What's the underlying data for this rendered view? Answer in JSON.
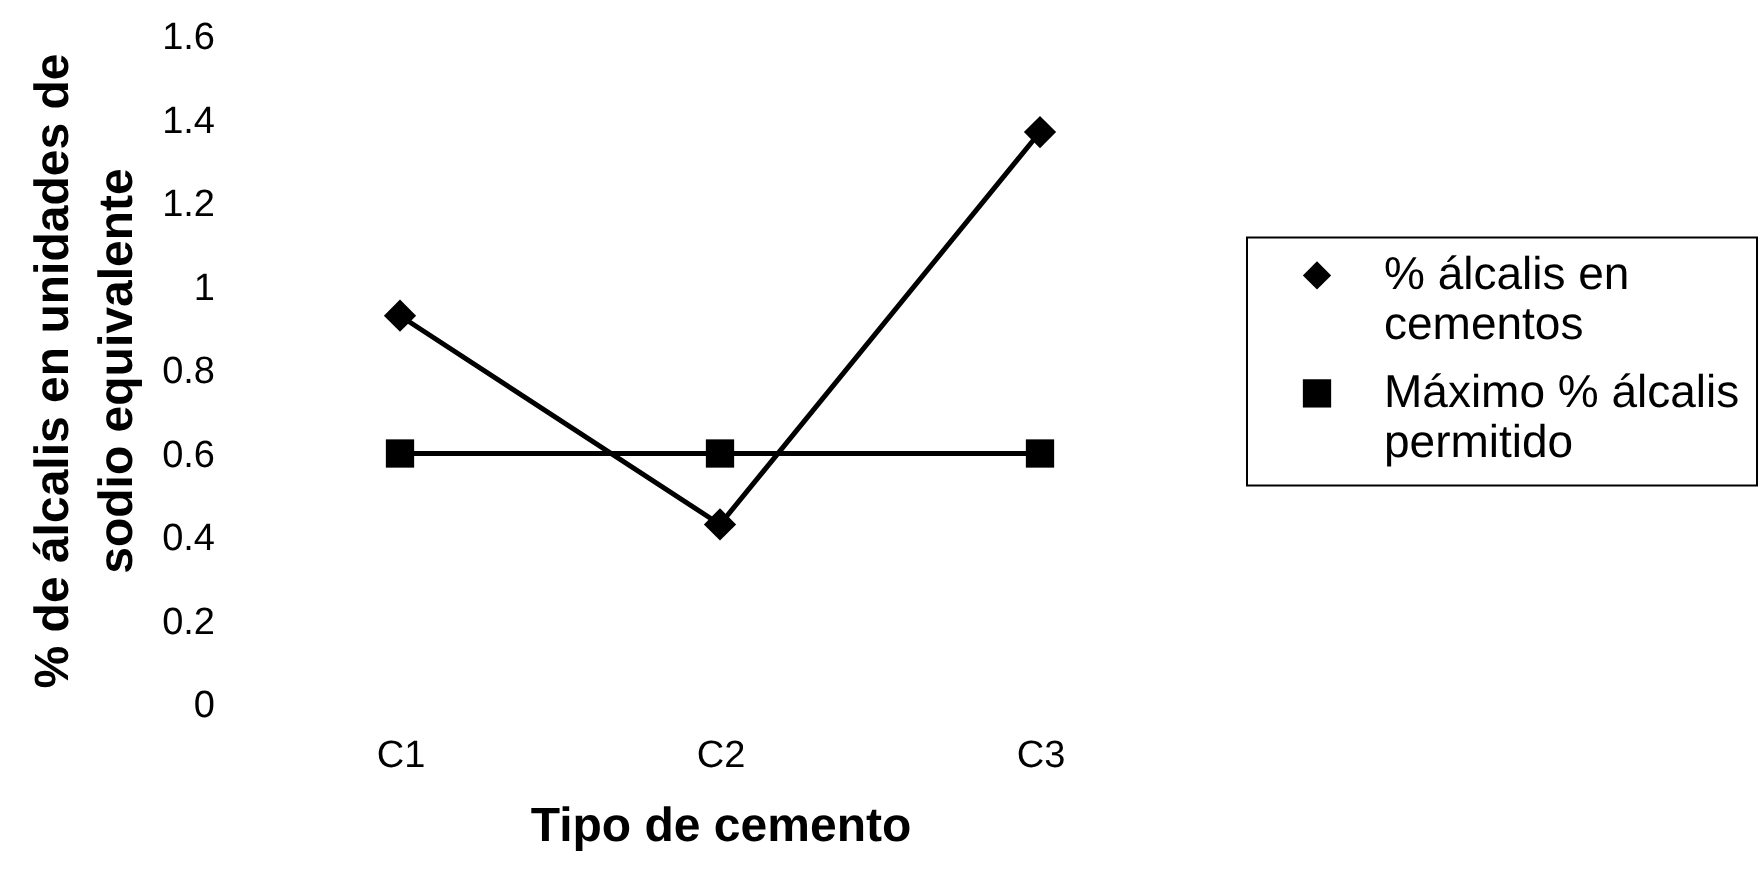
{
  "chart_data": {
    "type": "line",
    "xlabel": "Tipo de cemento",
    "ylabel": "% de álcalis en unidades de sodio equivalente",
    "categories": [
      "C1",
      "C2",
      "C3"
    ],
    "series": [
      {
        "name": "% álcalis en cementos",
        "color": "#000000",
        "marker": "diamond",
        "values": [
          0.93,
          0.43,
          1.37
        ]
      },
      {
        "name": "Máximo % álcalis permitido",
        "color": "#000000",
        "marker": "square",
        "values": [
          0.6,
          0.6,
          0.6
        ]
      }
    ],
    "ylim": [
      0,
      1.6
    ],
    "yticks": [
      0,
      0.2,
      0.4,
      0.6,
      0.8,
      1,
      1.2,
      1.4,
      1.6
    ],
    "legend": "right",
    "line_style": "solid"
  }
}
